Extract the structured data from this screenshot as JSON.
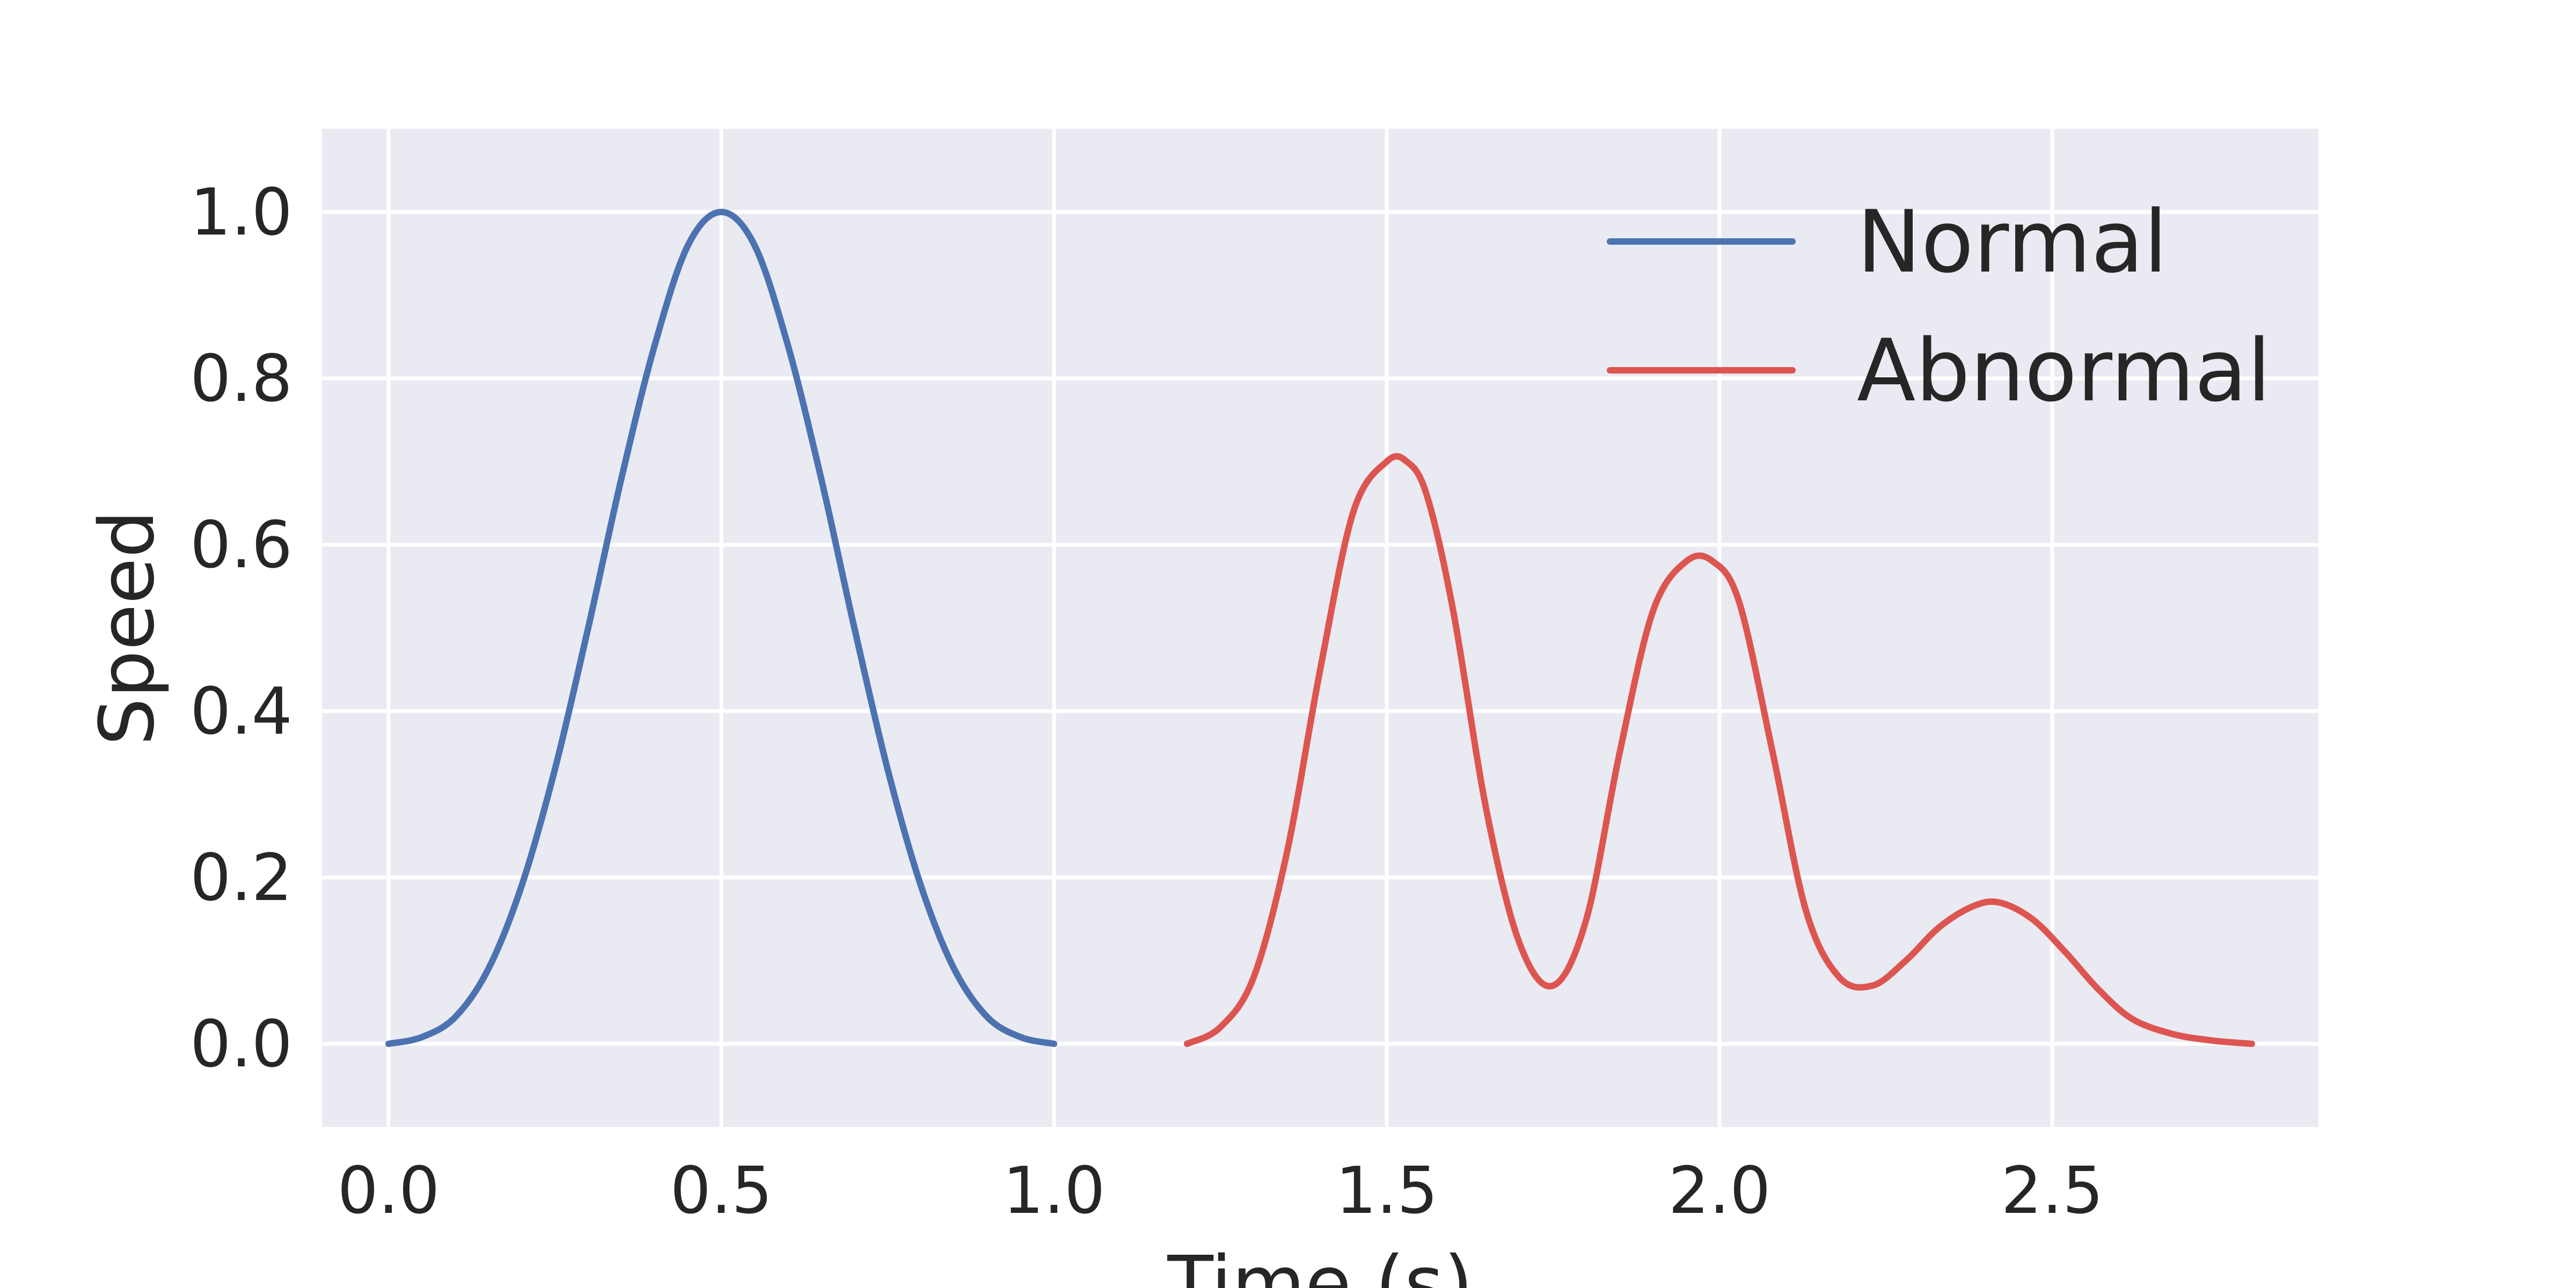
{
  "chart_data": {
    "type": "line",
    "xlabel": "Time (s)",
    "ylabel": "Speed",
    "xlim": [
      -0.1,
      2.9
    ],
    "ylim": [
      -0.1,
      1.1
    ],
    "x_ticks": [
      "0.0",
      "0.5",
      "1.0",
      "1.5",
      "2.0",
      "2.5"
    ],
    "y_ticks": [
      "0.0",
      "0.2",
      "0.4",
      "0.6",
      "0.8",
      "1.0"
    ],
    "grid": true,
    "legend_position": "top-right",
    "series": [
      {
        "name": "Normal",
        "color": "#4c72b0",
        "x": [
          0.0,
          0.05,
          0.1,
          0.15,
          0.2,
          0.25,
          0.3,
          0.35,
          0.4,
          0.45,
          0.5,
          0.55,
          0.6,
          0.65,
          0.7,
          0.75,
          0.8,
          0.85,
          0.9,
          0.95,
          1.0
        ],
        "y": [
          0.0,
          0.008,
          0.032,
          0.09,
          0.19,
          0.33,
          0.5,
          0.68,
          0.84,
          0.96,
          1.0,
          0.96,
          0.84,
          0.68,
          0.5,
          0.33,
          0.19,
          0.09,
          0.032,
          0.008,
          0.0
        ]
      },
      {
        "name": "Abnormal",
        "color": "#dd5550",
        "x": [
          1.2,
          1.25,
          1.3,
          1.35,
          1.4,
          1.45,
          1.5,
          1.53,
          1.56,
          1.6,
          1.65,
          1.7,
          1.75,
          1.8,
          1.85,
          1.9,
          1.95,
          1.99,
          2.03,
          2.08,
          2.13,
          2.18,
          2.23,
          2.28,
          2.33,
          2.38,
          2.42,
          2.47,
          2.52,
          2.57,
          2.62,
          2.68,
          2.74,
          2.8
        ],
        "y": [
          0.0,
          0.02,
          0.08,
          0.23,
          0.45,
          0.64,
          0.7,
          0.7,
          0.66,
          0.52,
          0.28,
          0.12,
          0.07,
          0.15,
          0.35,
          0.52,
          0.58,
          0.58,
          0.53,
          0.35,
          0.16,
          0.08,
          0.07,
          0.1,
          0.14,
          0.165,
          0.17,
          0.15,
          0.11,
          0.065,
          0.03,
          0.012,
          0.004,
          0.0
        ]
      }
    ]
  }
}
